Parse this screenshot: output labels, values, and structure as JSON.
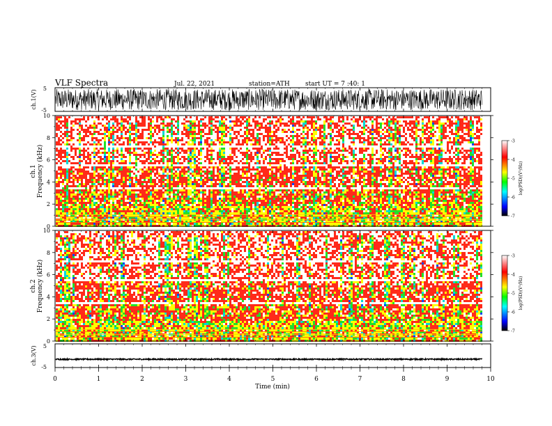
{
  "header": {
    "title": "VLF Spectra",
    "date": "Jul. 22, 2021",
    "station": "station=ATH",
    "start": "start UT = 7 :40: 1"
  },
  "chart_data": [
    {
      "type": "line",
      "name": "ch1-waveform",
      "ylabel": "ch.1(V)",
      "ylim": [
        -5,
        5
      ],
      "yticks": [
        "5",
        "-5"
      ],
      "xlim": [
        0,
        10
      ],
      "description_values": {
        "amplitude_approx": 4.5
      }
    },
    {
      "type": "heatmap",
      "name": "ch1-spectrogram",
      "ylabel_line1": "ch.1",
      "ylabel_line2": "Frequency (kHz)",
      "ylim": [
        0,
        10
      ],
      "yticks": [
        "0",
        "2",
        "4",
        "6",
        "8",
        "10"
      ],
      "xlim": [
        0,
        10
      ],
      "data_end_min": 9.8,
      "colorbar": {
        "label": "log(PSD)(V²/Hz)",
        "range": [
          -7,
          -3
        ],
        "ticks": [
          "-3",
          "-4",
          "-5",
          "-6",
          "-7"
        ]
      }
    },
    {
      "type": "heatmap",
      "name": "ch2-spectrogram",
      "ylabel_line1": "ch.2",
      "ylabel_line2": "Frequency (kHz)",
      "ylim": [
        0,
        10
      ],
      "yticks": [
        "0",
        "2",
        "4",
        "6",
        "8",
        "10"
      ],
      "xlim": [
        0,
        10
      ],
      "data_end_min": 9.8,
      "colorbar": {
        "label": "log(PSD)(V²/Hz)",
        "range": [
          -7,
          -3
        ],
        "ticks": [
          "-3",
          "-4",
          "-5",
          "-6",
          "-7"
        ]
      }
    },
    {
      "type": "line",
      "name": "ch3-waveform",
      "ylabel": "ch.3(V)",
      "ylim": [
        -5,
        5
      ],
      "yticks": [
        "5",
        "-5"
      ],
      "xlim": [
        0,
        10
      ],
      "description_values": {
        "level_approx": -1.5
      }
    }
  ],
  "xaxis": {
    "label": "Time (min)",
    "ticks": [
      "0",
      "1",
      "2",
      "3",
      "4",
      "5",
      "6",
      "7",
      "8",
      "9",
      "10"
    ]
  },
  "colors": {
    "red": "#ff2a1a",
    "yellow": "#ffff00",
    "green": "#22e02a",
    "cyan": "#00d8d8",
    "blue": "#0044ff",
    "white": "#ffffff"
  }
}
